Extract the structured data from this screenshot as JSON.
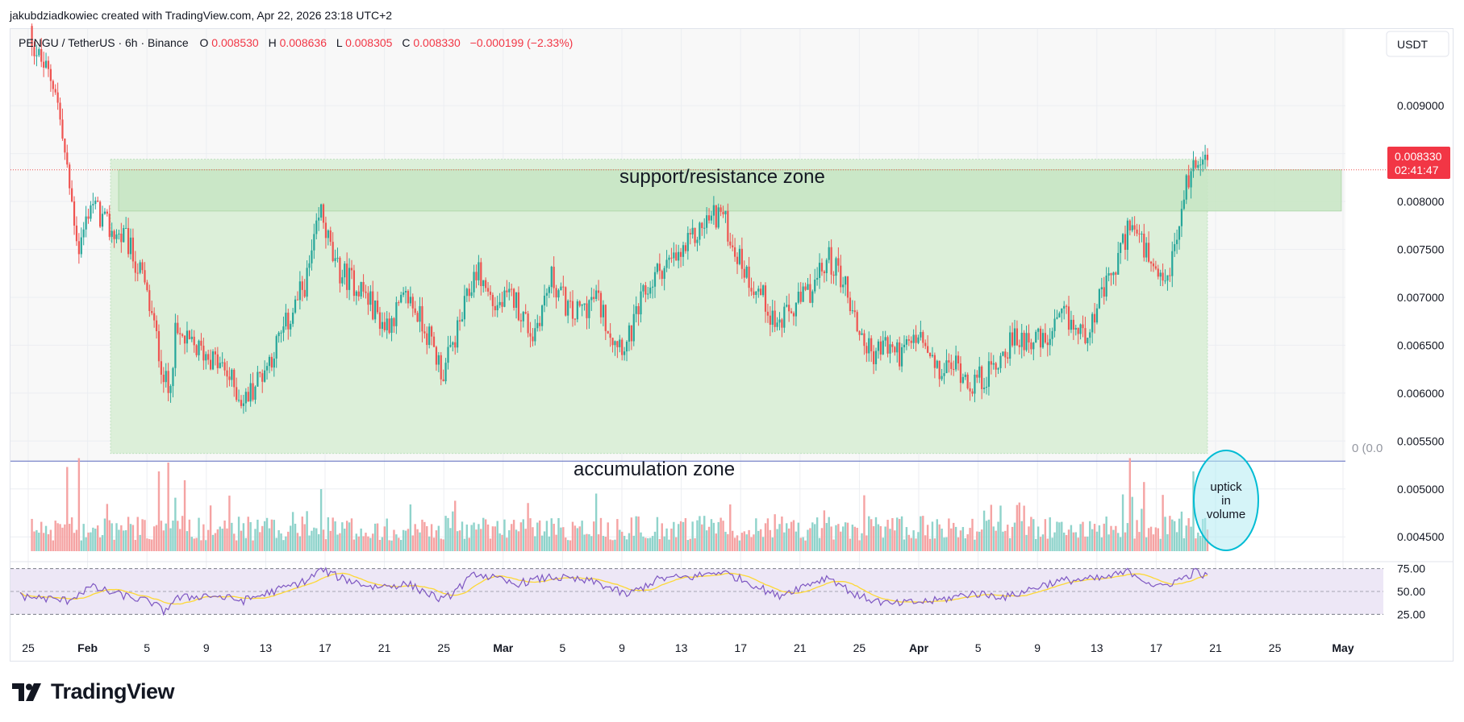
{
  "credit": "jakubdziadkowiec created with TradingView.com, Apr 22, 2026 23:18 UTC+2",
  "brand": "TradingView",
  "legend": {
    "symbol": "PENGU / TetherUS · 6h · Binance",
    "o_label": "O",
    "o": "0.008530",
    "h_label": "H",
    "h": "0.008636",
    "l_label": "L",
    "l": "0.008305",
    "c_label": "C",
    "c": "0.008330",
    "change": "−0.000199 (−2.33%)"
  },
  "currency_button": "USDT",
  "price_tag": {
    "price": "0.008330",
    "countdown": "02:41:47"
  },
  "fib_label": "0 (0.0",
  "annotations": {
    "sr_zone": "support/resistance zone",
    "accum_zone": "accumulation zone",
    "volume_note": [
      "uptick",
      "in",
      "volume"
    ]
  },
  "colors": {
    "up": "#26a69a",
    "down": "#ef5350",
    "vol_up": "#8fd3cb",
    "vol_down": "#f5a3a3",
    "rsi": "#7e57c2",
    "rsi_ma": "#fdd835",
    "rsi_band": "#ede7f6",
    "accum_fill": "#dcefd9",
    "sr_fill": "#c7e5c3",
    "circle": "#b2ebf2"
  },
  "chart_data": {
    "type": "candlestick",
    "symbol": "PENGU/USDT",
    "interval": "6h",
    "y_range": [
      0.0043,
      0.0098
    ],
    "y_ticks": [
      "0.009000",
      "0.008500",
      "0.008000",
      "0.007500",
      "0.007000",
      "0.006500",
      "0.006000",
      "0.005500",
      "0.005000",
      "0.004500"
    ],
    "x_ticks": [
      "25",
      "Feb",
      "5",
      "9",
      "13",
      "17",
      "21",
      "25",
      "Mar",
      "5",
      "9",
      "13",
      "17",
      "21",
      "25",
      "Apr",
      "5",
      "9",
      "13",
      "17",
      "21",
      "25",
      "May"
    ],
    "last_price": 0.00833,
    "zones": {
      "support_resistance": [
        0.0079,
        0.00833
      ],
      "accumulation_low": 0.00537
    },
    "price_path": [
      [
        0,
        0.01
      ],
      [
        8,
        0.0095
      ],
      [
        15,
        0.0092
      ],
      [
        20,
        0.0083
      ],
      [
        25,
        0.0075
      ],
      [
        30,
        0.008
      ],
      [
        38,
        0.0077
      ],
      [
        45,
        0.0076
      ],
      [
        52,
        0.0072
      ],
      [
        56,
        0.0068
      ],
      [
        61,
        0.0062
      ],
      [
        63,
        0.006
      ],
      [
        66,
        0.0066
      ],
      [
        72,
        0.0065
      ],
      [
        80,
        0.0064
      ],
      [
        88,
        0.0062
      ],
      [
        95,
        0.0059
      ],
      [
        105,
        0.0063
      ],
      [
        115,
        0.0068
      ],
      [
        122,
        0.0072
      ],
      [
        128,
        0.0079
      ],
      [
        134,
        0.0073
      ],
      [
        145,
        0.0071
      ],
      [
        155,
        0.0067
      ],
      [
        165,
        0.007
      ],
      [
        172,
        0.0067
      ],
      [
        180,
        0.0062
      ],
      [
        188,
        0.0068
      ],
      [
        194,
        0.0073
      ],
      [
        202,
        0.0069
      ],
      [
        210,
        0.007
      ],
      [
        218,
        0.0066
      ],
      [
        226,
        0.0072
      ],
      [
        235,
        0.0068
      ],
      [
        245,
        0.007
      ],
      [
        252,
        0.0066
      ],
      [
        258,
        0.0065
      ],
      [
        265,
        0.007
      ],
      [
        272,
        0.0073
      ],
      [
        280,
        0.0074
      ],
      [
        286,
        0.0076
      ],
      [
        292,
        0.0078
      ],
      [
        298,
        0.0079
      ],
      [
        304,
        0.0075
      ],
      [
        310,
        0.0072
      ],
      [
        316,
        0.007
      ],
      [
        322,
        0.0067
      ],
      [
        330,
        0.0069
      ],
      [
        337,
        0.0071
      ],
      [
        344,
        0.0074
      ],
      [
        350,
        0.0072
      ],
      [
        356,
        0.0067
      ],
      [
        362,
        0.0064
      ],
      [
        368,
        0.0065
      ],
      [
        375,
        0.0064
      ],
      [
        382,
        0.0066
      ],
      [
        390,
        0.0062
      ],
      [
        398,
        0.0063
      ],
      [
        405,
        0.0061
      ],
      [
        412,
        0.0062
      ],
      [
        420,
        0.0065
      ],
      [
        428,
        0.0066
      ],
      [
        436,
        0.0065
      ],
      [
        444,
        0.0068
      ],
      [
        452,
        0.0066
      ],
      [
        460,
        0.007
      ],
      [
        466,
        0.0073
      ],
      [
        472,
        0.0078
      ],
      [
        478,
        0.0075
      ],
      [
        484,
        0.0071
      ],
      [
        488,
        0.0072
      ],
      [
        492,
        0.0076
      ],
      [
        496,
        0.0082
      ],
      [
        500,
        0.0084
      ],
      [
        504,
        0.0086
      ],
      [
        506,
        0.0083
      ]
    ],
    "rsi": {
      "levels": [
        75.0,
        50.0,
        25.0
      ],
      "range": [
        20,
        80
      ],
      "path": [
        [
          0,
          45
        ],
        [
          20,
          40
        ],
        [
          30,
          55
        ],
        [
          40,
          48
        ],
        [
          56,
          38
        ],
        [
          61,
          28
        ],
        [
          66,
          42
        ],
        [
          80,
          46
        ],
        [
          95,
          40
        ],
        [
          110,
          52
        ],
        [
          122,
          62
        ],
        [
          128,
          74
        ],
        [
          136,
          65
        ],
        [
          150,
          55
        ],
        [
          165,
          58
        ],
        [
          180,
          40
        ],
        [
          194,
          70
        ],
        [
          210,
          58
        ],
        [
          226,
          66
        ],
        [
          245,
          60
        ],
        [
          258,
          46
        ],
        [
          272,
          64
        ],
        [
          286,
          66
        ],
        [
          298,
          72
        ],
        [
          310,
          60
        ],
        [
          322,
          45
        ],
        [
          337,
          60
        ],
        [
          344,
          66
        ],
        [
          356,
          45
        ],
        [
          370,
          36
        ],
        [
          390,
          40
        ],
        [
          405,
          48
        ],
        [
          420,
          44
        ],
        [
          436,
          58
        ],
        [
          444,
          62
        ],
        [
          460,
          64
        ],
        [
          472,
          72
        ],
        [
          484,
          54
        ],
        [
          496,
          66
        ],
        [
          500,
          72
        ],
        [
          506,
          64
        ]
      ]
    },
    "volume": {
      "relative_levels_note": "bars colored by candle direction",
      "spikes": [
        [
          20,
          0.7
        ],
        [
          25,
          0.8
        ],
        [
          59,
          0.9
        ],
        [
          63,
          1.0
        ],
        [
          70,
          0.8
        ],
        [
          128,
          0.7
        ],
        [
          245,
          0.65
        ],
        [
          472,
          0.8
        ],
        [
          478,
          0.78
        ],
        [
          499,
          0.9
        ]
      ]
    }
  }
}
